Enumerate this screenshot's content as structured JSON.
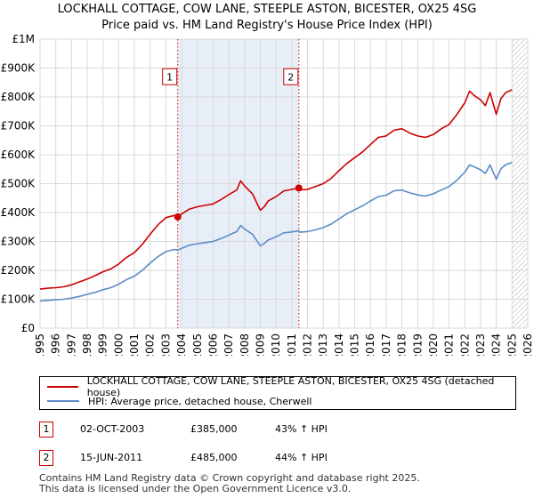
{
  "title_line1": "LOCKHALL COTTAGE, COW LANE, STEEPLE ASTON, BICESTER, OX25 4SG",
  "title_line2": "Price paid vs. HM Land Registry's House Price Index (HPI)",
  "legend": {
    "property_label": "LOCKHALL COTTAGE, COW LANE, STEEPLE ASTON, BICESTER, OX25 4SG (detached house)",
    "hpi_label": "HPI: Average price, detached house, Cherwell"
  },
  "colors": {
    "property": "#cc0000",
    "hpi": "#5b8cc8",
    "shade": "#e8eef8",
    "marker_line": "#cc0000"
  },
  "sales": [
    {
      "id": "1",
      "date": "02-OCT-2003",
      "price": "£385,000",
      "hpi_change": "43% ↑ HPI"
    },
    {
      "id": "2",
      "date": "15-JUN-2011",
      "price": "£485,000",
      "hpi_change": "44% ↑ HPI"
    }
  ],
  "footer": {
    "line1": "Contains HM Land Registry data © Crown copyright and database right 2025.",
    "line2": "This data is licensed under the Open Government Licence v3.0."
  },
  "chart_data": {
    "type": "line",
    "title": "LOCKHALL COTTAGE, COW LANE, STEEPLE ASTON, BICESTER, OX25 4SG",
    "subtitle": "Price paid vs. HM Land Registry's House Price Index (HPI)",
    "xlabel": "",
    "ylabel": "",
    "xlim": [
      1995,
      2026
    ],
    "ylim": [
      0,
      1000000
    ],
    "y_ticks": [
      {
        "value": 0,
        "label": "£0"
      },
      {
        "value": 100000,
        "label": "£100K"
      },
      {
        "value": 200000,
        "label": "£200K"
      },
      {
        "value": 300000,
        "label": "£300K"
      },
      {
        "value": 400000,
        "label": "£400K"
      },
      {
        "value": 500000,
        "label": "£500K"
      },
      {
        "value": 600000,
        "label": "£600K"
      },
      {
        "value": 700000,
        "label": "£700K"
      },
      {
        "value": 800000,
        "label": "£800K"
      },
      {
        "value": 900000,
        "label": "£900K"
      },
      {
        "value": 1000000,
        "label": "£1M"
      }
    ],
    "x_ticks": [
      "1995",
      "1996",
      "1997",
      "1998",
      "1999",
      "2000",
      "2001",
      "2002",
      "2003",
      "2004",
      "2005",
      "2006",
      "2007",
      "2008",
      "2009",
      "2010",
      "2011",
      "2012",
      "2013",
      "2014",
      "2015",
      "2016",
      "2017",
      "2018",
      "2019",
      "2020",
      "2021",
      "2022",
      "2023",
      "2024",
      "2025",
      "2026"
    ],
    "grid": true,
    "shaded_range": [
      2003.75,
      2011.45
    ],
    "hatch_from": 2025.0,
    "series": [
      {
        "name": "LOCKHALL COTTAGE, COW LANE, STEEPLE ASTON, BICESTER, OX25 4SG (detached house)",
        "x": [
          1995.0,
          1995.5,
          1996.0,
          1996.5,
          1997.0,
          1997.5,
          1998.0,
          1998.5,
          1999.0,
          1999.5,
          2000.0,
          2000.5,
          2001.0,
          2001.5,
          2002.0,
          2002.5,
          2003.0,
          2003.5,
          2003.75,
          2004.0,
          2004.5,
          2005.0,
          2005.5,
          2006.0,
          2006.5,
          2007.0,
          2007.5,
          2007.75,
          2008.0,
          2008.5,
          2009.0,
          2009.25,
          2009.5,
          2010.0,
          2010.5,
          2011.0,
          2011.45,
          2011.5,
          2012.0,
          2012.5,
          2013.0,
          2013.5,
          2014.0,
          2014.5,
          2015.0,
          2015.5,
          2016.0,
          2016.5,
          2017.0,
          2017.5,
          2018.0,
          2018.5,
          2019.0,
          2019.5,
          2020.0,
          2020.5,
          2021.0,
          2021.5,
          2022.0,
          2022.3,
          2022.6,
          2023.0,
          2023.3,
          2023.6,
          2024.0,
          2024.3,
          2024.6,
          2025.0
        ],
        "values": [
          135000,
          138000,
          140000,
          143000,
          150000,
          160000,
          170000,
          182000,
          195000,
          205000,
          222000,
          245000,
          262000,
          290000,
          325000,
          358000,
          382000,
          390000,
          385000,
          395000,
          412000,
          420000,
          425000,
          430000,
          445000,
          462000,
          478000,
          510000,
          492000,
          465000,
          408000,
          420000,
          440000,
          455000,
          475000,
          480000,
          485000,
          478000,
          480000,
          490000,
          500000,
          518000,
          545000,
          570000,
          590000,
          610000,
          635000,
          660000,
          665000,
          685000,
          690000,
          675000,
          665000,
          660000,
          670000,
          690000,
          705000,
          740000,
          780000,
          820000,
          805000,
          790000,
          770000,
          815000,
          740000,
          795000,
          815000,
          825000
        ]
      },
      {
        "name": "HPI: Average price, detached house, Cherwell",
        "x": [
          1995.0,
          1995.5,
          1996.0,
          1996.5,
          1997.0,
          1997.5,
          1998.0,
          1998.5,
          1999.0,
          1999.5,
          2000.0,
          2000.5,
          2001.0,
          2001.5,
          2002.0,
          2002.5,
          2003.0,
          2003.5,
          2003.75,
          2004.0,
          2004.5,
          2005.0,
          2005.5,
          2006.0,
          2006.5,
          2007.0,
          2007.5,
          2007.75,
          2008.0,
          2008.5,
          2009.0,
          2009.25,
          2009.5,
          2010.0,
          2010.5,
          2011.0,
          2011.45,
          2011.5,
          2012.0,
          2012.5,
          2013.0,
          2013.5,
          2014.0,
          2014.5,
          2015.0,
          2015.5,
          2016.0,
          2016.5,
          2017.0,
          2017.5,
          2018.0,
          2018.5,
          2019.0,
          2019.5,
          2020.0,
          2020.5,
          2021.0,
          2021.5,
          2022.0,
          2022.3,
          2022.6,
          2023.0,
          2023.3,
          2023.6,
          2024.0,
          2024.3,
          2024.6,
          2025.0
        ],
        "values": [
          94000,
          96000,
          98000,
          100000,
          104000,
          110000,
          117000,
          124000,
          133000,
          140000,
          152000,
          168000,
          180000,
          200000,
          225000,
          248000,
          265000,
          272000,
          270000,
          276000,
          287000,
          292000,
          296000,
          300000,
          310000,
          322000,
          334000,
          355000,
          343000,
          325000,
          285000,
          293000,
          305000,
          316000,
          330000,
          333000,
          337000,
          332000,
          334000,
          340000,
          348000,
          360000,
          378000,
          396000,
          410000,
          423000,
          440000,
          455000,
          460000,
          475000,
          478000,
          468000,
          461000,
          457000,
          465000,
          478000,
          490000,
          512000,
          540000,
          565000,
          558000,
          548000,
          535000,
          565000,
          515000,
          552000,
          566000,
          573000
        ]
      }
    ],
    "annotations": [
      {
        "label": "1",
        "x": 2003.75,
        "y": 385000,
        "badge_y": 870000
      },
      {
        "label": "2",
        "x": 2011.45,
        "y": 485000,
        "badge_y": 870000
      }
    ]
  }
}
